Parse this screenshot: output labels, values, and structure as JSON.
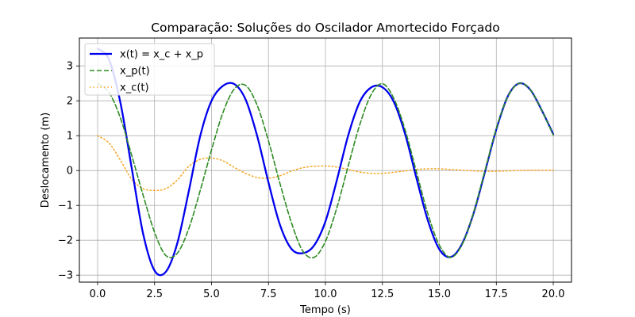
{
  "chart_data": {
    "type": "line",
    "title": "Comparação: Soluções do Oscilador Amortecido Forçado",
    "xlabel": "Tempo (s)",
    "ylabel": "Deslocamento (m)",
    "xlim": [
      -0.8,
      20.8
    ],
    "ylim": [
      -3.2,
      3.8
    ],
    "xticks": [
      0.0,
      2.5,
      5.0,
      7.5,
      10.0,
      12.5,
      15.0,
      17.5,
      20.0
    ],
    "xtick_labels": [
      "0.0",
      "2.5",
      "5.0",
      "7.5",
      "10.0",
      "12.5",
      "15.0",
      "17.5",
      "20.0"
    ],
    "yticks": [
      -3,
      -2,
      -1,
      0,
      1,
      2,
      3
    ],
    "ytick_labels": [
      "−3",
      "−2",
      "−1",
      "0",
      "1",
      "2",
      "3"
    ],
    "grid": true,
    "legend_position": "top-left",
    "series": [
      {
        "name": "x(t) = x_c + x_p",
        "color": "#0000ee",
        "style": "solid",
        "x": [
          0,
          0.5,
          1,
          1.5,
          2,
          2.5,
          3,
          3.5,
          4,
          4.5,
          5,
          5.5,
          6,
          6.5,
          7,
          7.5,
          8,
          8.5,
          9,
          9.5,
          10,
          10.5,
          11,
          11.5,
          12,
          12.5,
          13,
          13.5,
          14,
          14.5,
          15,
          15.5,
          16,
          16.5,
          17,
          17.5,
          18,
          18.5,
          19,
          19.5,
          20
        ],
        "y": [
          3.5,
          3.19,
          1.95,
          0.06,
          -1.82,
          -2.87,
          -2.9,
          -2.08,
          -0.6,
          0.98,
          2.0,
          2.43,
          2.48,
          2.03,
          1.0,
          -0.34,
          -1.55,
          -2.24,
          -2.37,
          -2.15,
          -1.46,
          -0.28,
          1.01,
          1.96,
          2.38,
          2.39,
          1.97,
          1.04,
          -0.23,
          -1.44,
          -2.26,
          -2.48,
          -2.1,
          -1.23,
          -0.04,
          1.18,
          2.12,
          2.5,
          2.31,
          1.72,
          1.04
        ]
      },
      {
        "name": "x_p(t)",
        "color": "#2e8b22",
        "style": "dashed",
        "x": [
          0,
          0.5,
          1,
          1.5,
          2,
          2.5,
          3,
          3.5,
          4,
          4.5,
          5,
          5.5,
          6,
          6.5,
          7,
          7.5,
          8,
          8.5,
          9,
          9.5,
          10,
          10.5,
          11,
          11.5,
          12,
          12.5,
          13,
          13.5,
          14,
          14.5,
          15,
          15.5,
          16,
          16.5,
          17,
          17.5,
          18,
          18.5,
          19,
          19.5,
          20
        ],
        "y": [
          2.5,
          2.24,
          1.51,
          0.43,
          -0.71,
          -1.77,
          -2.44,
          -2.37,
          -1.67,
          -0.58,
          0.59,
          1.66,
          2.34,
          2.44,
          1.88,
          0.85,
          -0.36,
          -1.48,
          -2.3,
          -2.49,
          -2.03,
          -1.07,
          0.13,
          1.3,
          2.17,
          2.49,
          2.07,
          1.16,
          -0.05,
          -1.25,
          -2.14,
          -2.49,
          -2.12,
          -1.21,
          -0.01,
          1.2,
          2.11,
          2.5,
          2.31,
          1.72,
          1.02
        ]
      },
      {
        "name": "x_c(t)",
        "color": "#f5a623",
        "style": "dotted",
        "x": [
          0,
          0.5,
          1,
          1.5,
          2,
          2.5,
          3,
          3.5,
          4,
          4.5,
          5,
          5.5,
          6,
          6.5,
          7,
          7.5,
          8,
          8.5,
          9,
          9.5,
          10,
          10.5,
          11,
          11.5,
          12,
          12.5,
          13,
          13.5,
          14,
          14.5,
          15,
          15.5,
          16,
          16.5,
          17,
          17.5,
          18,
          18.5,
          19,
          19.5,
          20
        ],
        "y": [
          1.0,
          0.79,
          0.3,
          -0.25,
          -0.52,
          -0.57,
          -0.52,
          -0.27,
          0.12,
          0.32,
          0.36,
          0.28,
          0.09,
          -0.08,
          -0.2,
          -0.22,
          -0.15,
          -0.02,
          0.08,
          0.12,
          0.13,
          0.1,
          0.03,
          -0.04,
          -0.08,
          -0.08,
          -0.05,
          -0.01,
          0.03,
          0.05,
          0.05,
          0.03,
          0.01,
          -0.01,
          -0.02,
          -0.02,
          -0.01,
          0.0,
          0.01,
          0.01,
          0.01
        ]
      }
    ]
  }
}
